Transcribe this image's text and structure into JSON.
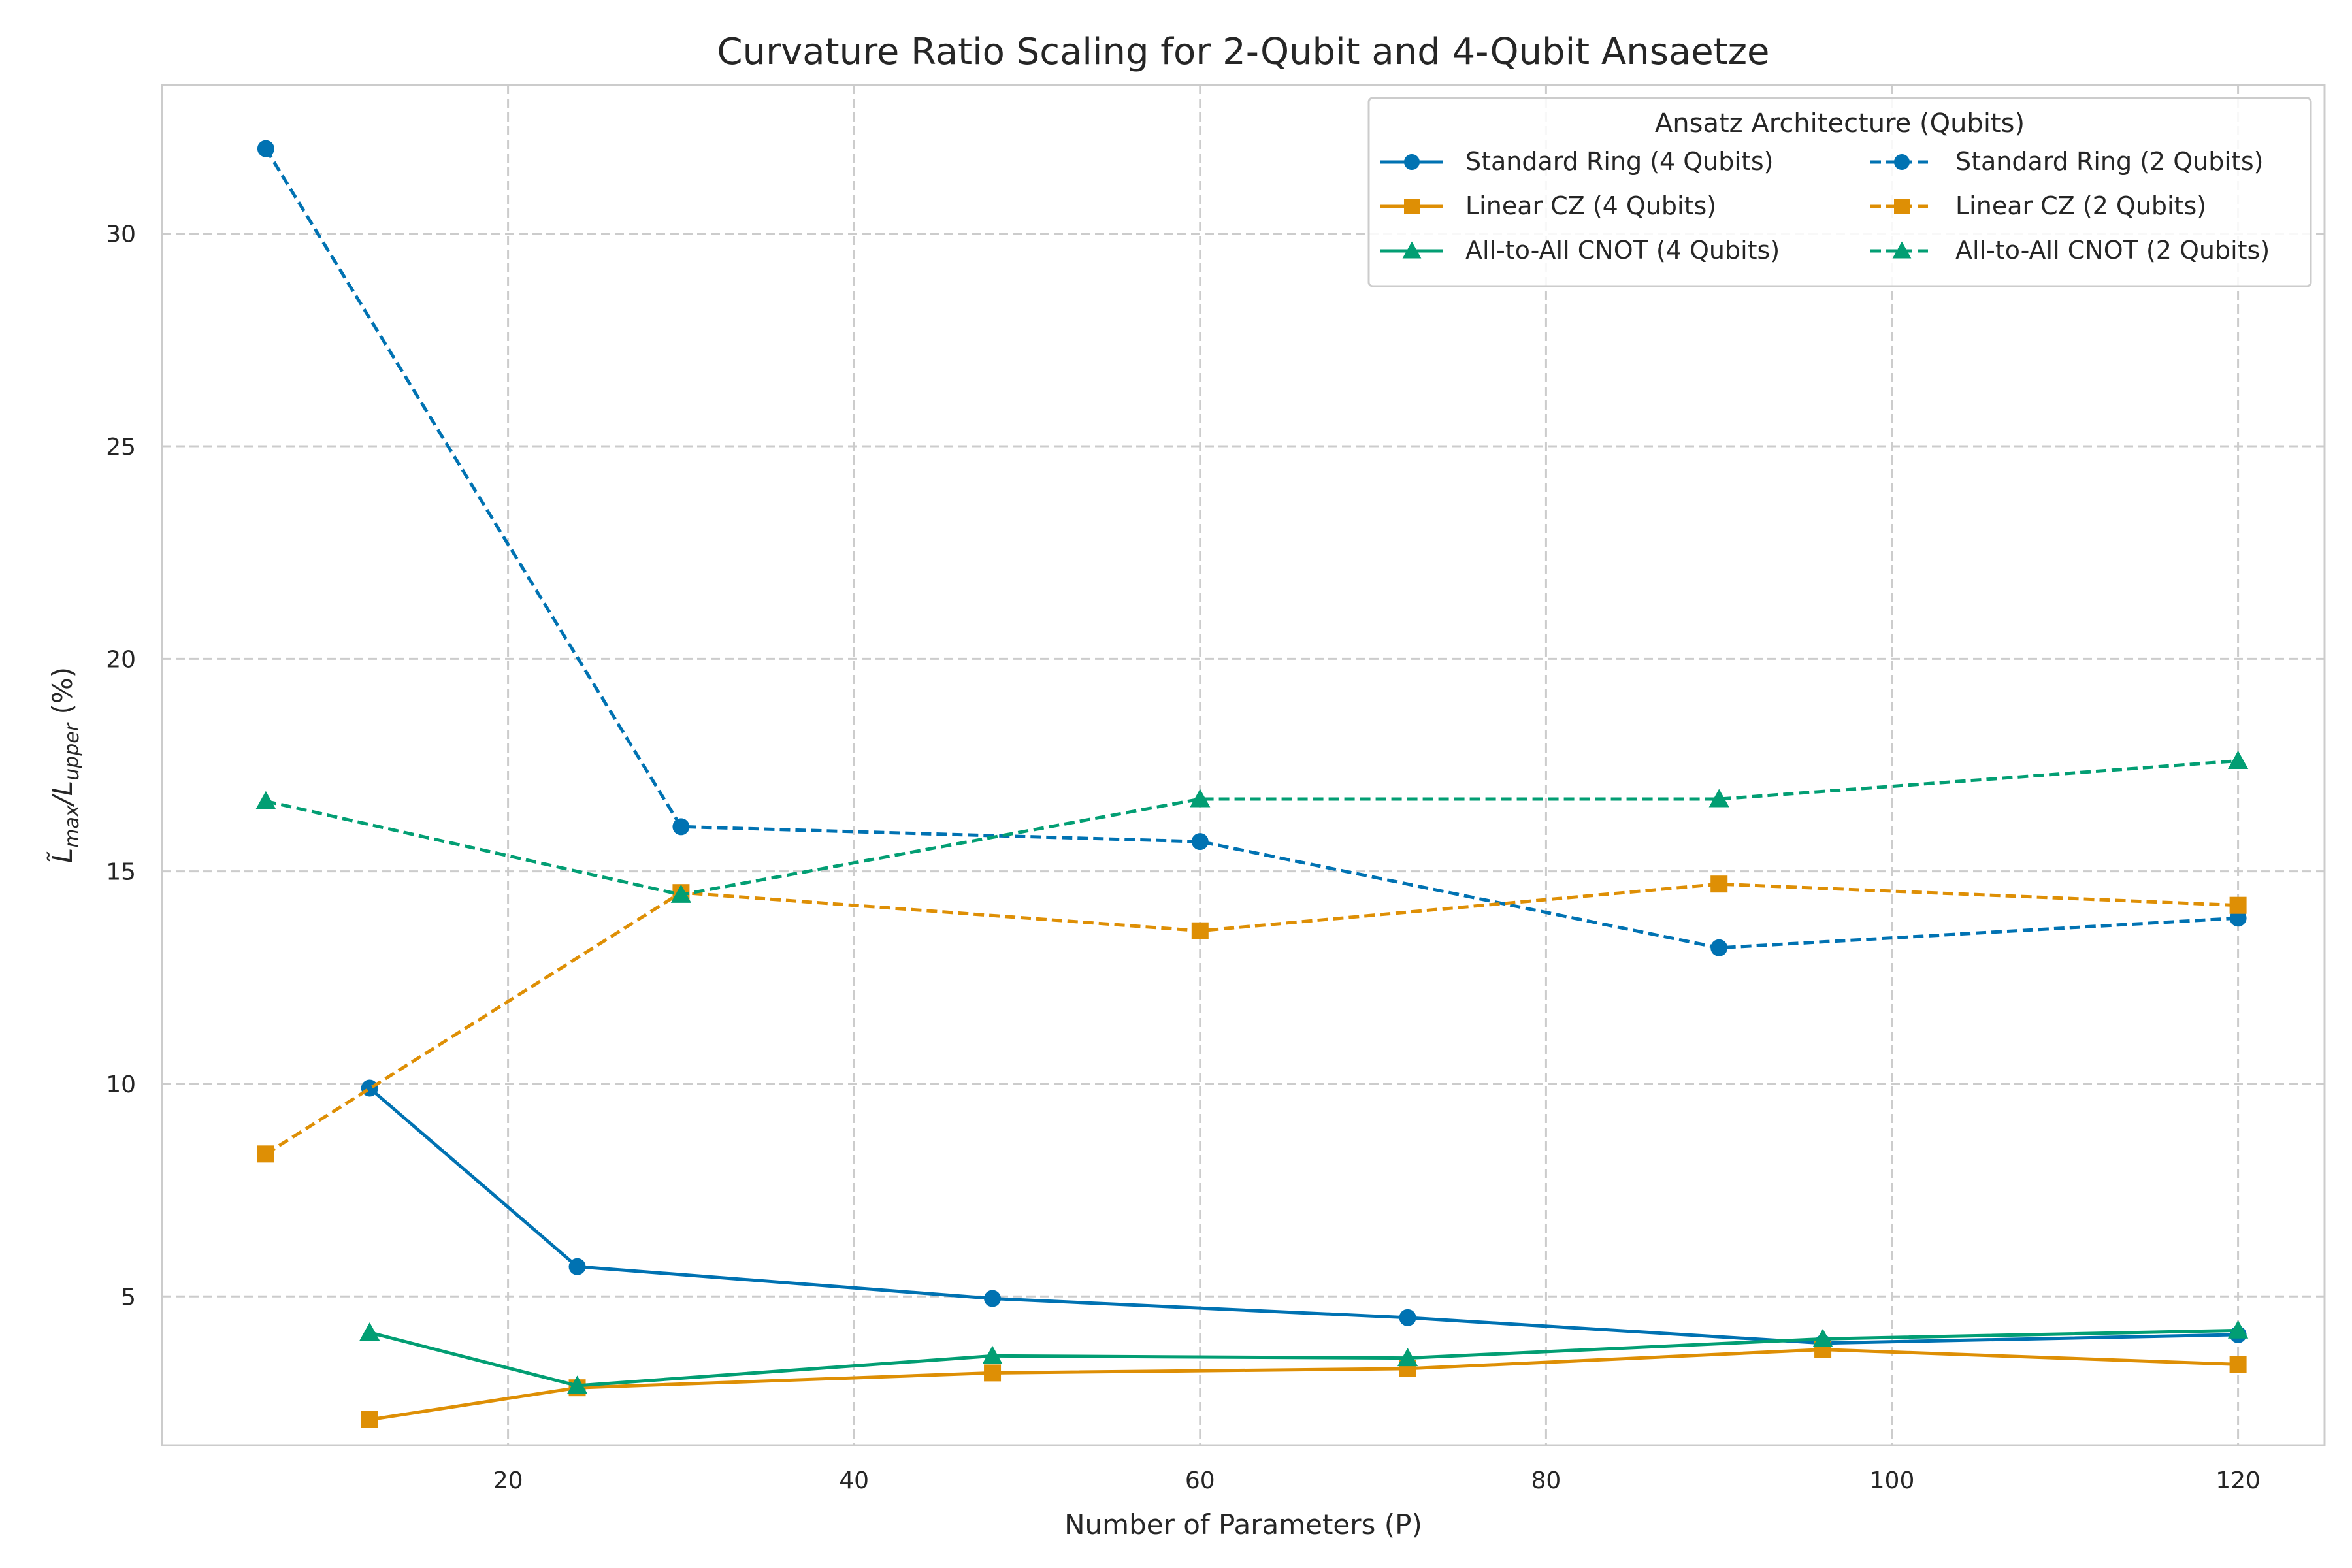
{
  "chart_data": {
    "type": "line",
    "title": "Curvature Ratio Scaling for 2-Qubit and 4-Qubit Ansaetze",
    "xlabel": "Number of Parameters (P)",
    "ylabel": "L̃_max/L_upper (%)",
    "ylabel_parts": {
      "base1": "L̃",
      "sub1": "max",
      "sep": "/L",
      "sub2": "upper",
      "suffix": " (%)"
    },
    "xlim": [
      0,
      125
    ],
    "ylim": [
      1.5,
      33.5
    ],
    "xticks": [
      20,
      40,
      60,
      80,
      100,
      120
    ],
    "yticks": [
      5,
      10,
      15,
      20,
      25,
      30
    ],
    "grid": true,
    "legend": {
      "title": "Ansatz Architecture (Qubits)",
      "placement": "top-right",
      "columns": 2
    },
    "series": [
      {
        "name": "Standard Ring (4 Qubits)",
        "color": "#0072b2",
        "dash": "solid",
        "marker": "circle",
        "x": [
          12,
          24,
          48,
          72,
          96,
          120
        ],
        "y": [
          9.9,
          5.7,
          4.95,
          4.5,
          3.9,
          4.1
        ]
      },
      {
        "name": "Linear CZ (4 Qubits)",
        "color": "#de8f05",
        "dash": "solid",
        "marker": "square",
        "x": [
          12,
          24,
          48,
          72,
          96,
          120
        ],
        "y": [
          2.1,
          2.85,
          3.2,
          3.3,
          3.75,
          3.4
        ]
      },
      {
        "name": "All-to-All CNOT (4 Qubits)",
        "color": "#029e73",
        "dash": "solid",
        "marker": "triangle",
        "x": [
          12,
          24,
          48,
          72,
          96,
          120
        ],
        "y": [
          4.15,
          2.9,
          3.6,
          3.55,
          4.0,
          4.2
        ]
      },
      {
        "name": "Standard Ring (2 Qubits)",
        "color": "#0072b2",
        "dash": "dashed",
        "marker": "circle",
        "x": [
          6,
          30,
          60,
          90,
          120
        ],
        "y": [
          32.0,
          16.05,
          15.7,
          13.2,
          13.9
        ]
      },
      {
        "name": "Linear CZ (2 Qubits)",
        "color": "#de8f05",
        "dash": "dashed",
        "marker": "square",
        "x": [
          6,
          30,
          60,
          90,
          120
        ],
        "y": [
          8.35,
          14.5,
          13.6,
          14.7,
          14.2
        ]
      },
      {
        "name": "All-to-All CNOT (2 Qubits)",
        "color": "#029e73",
        "dash": "dashed",
        "marker": "triangle",
        "x": [
          6,
          30,
          60,
          90,
          120
        ],
        "y": [
          16.65,
          14.45,
          16.7,
          16.7,
          17.6
        ]
      }
    ]
  }
}
